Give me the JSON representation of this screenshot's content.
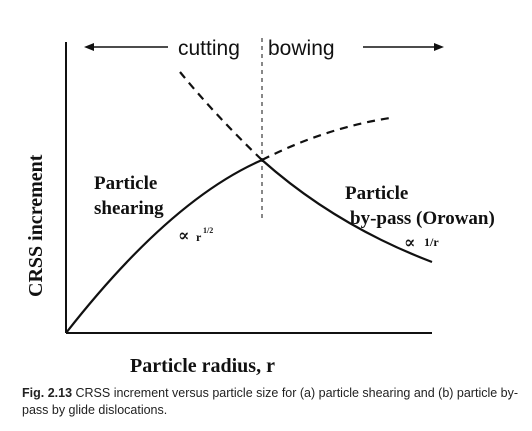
{
  "diagram": {
    "label_cutting": "cutting",
    "label_bowing": "bowing",
    "y_axis_label": "CRSS increment",
    "x_axis_label": "Particle radius, r",
    "curve_left": {
      "line1": "Particle",
      "line2": "shearing",
      "prop_symbol": "∝",
      "prop_base": "r",
      "prop_exp": "1/2"
    },
    "curve_right": {
      "line1": "Particle",
      "line2": "by-pass (Orowan)",
      "prop_symbol": "∝",
      "prop_value": "1/r"
    },
    "line_color": "#111111"
  },
  "caption": {
    "figure_label": "Fig. 2.13",
    "text": " CRSS increment versus particle size for (a) particle shearing and (b) particle by-pass by glide dislocations."
  }
}
